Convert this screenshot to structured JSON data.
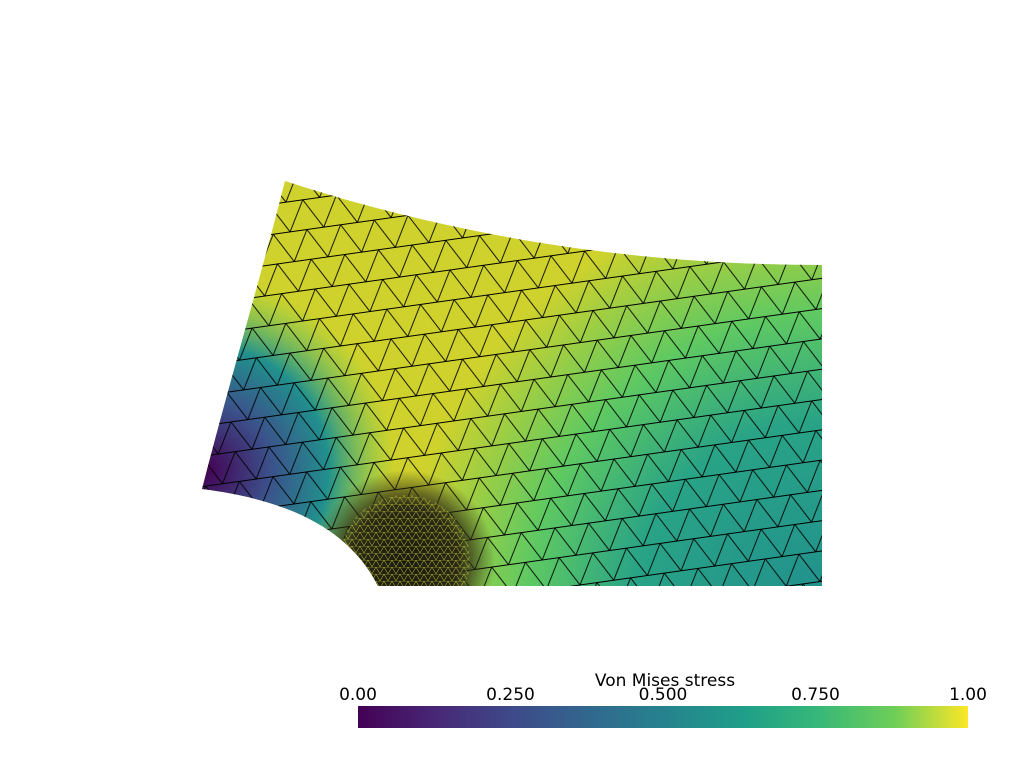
{
  "colorbar": {
    "title": "Von Mises stress",
    "range": [
      0,
      1
    ],
    "ticks": [
      {
        "value": 0,
        "label": "0.00"
      },
      {
        "value": 0.25,
        "label": "0.250"
      },
      {
        "value": 0.5,
        "label": "0.500"
      },
      {
        "value": 0.75,
        "label": "0.750"
      },
      {
        "value": 1,
        "label": "1.00"
      }
    ]
  }
}
